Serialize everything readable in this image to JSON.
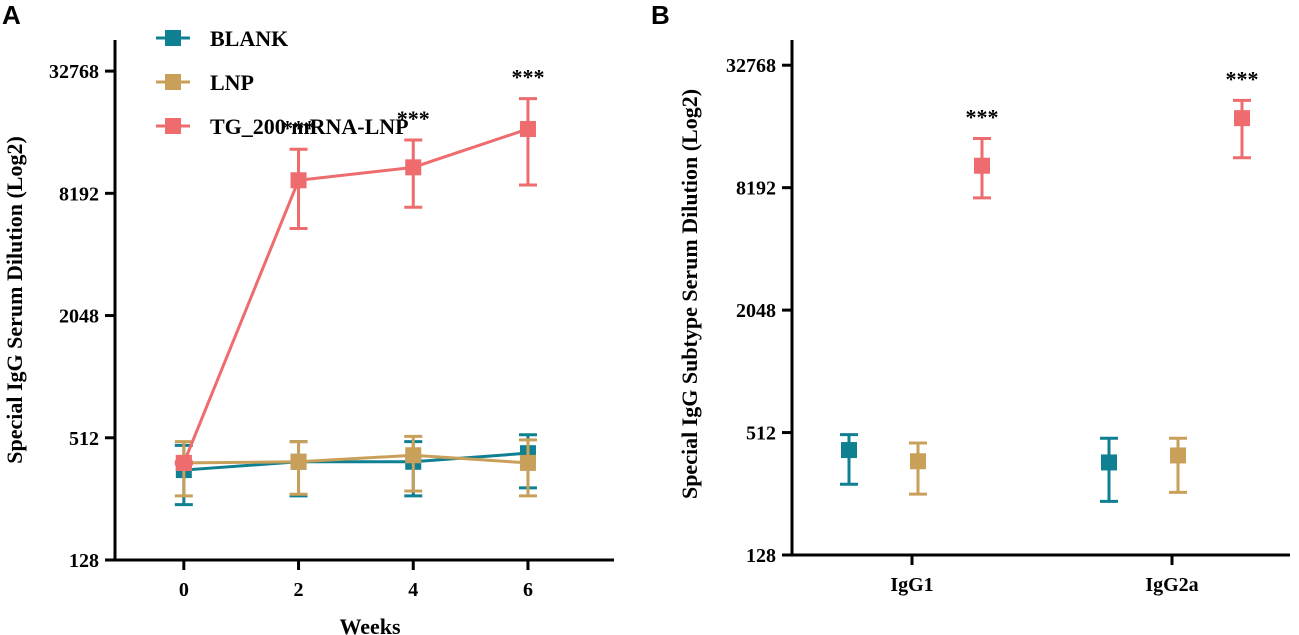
{
  "colors": {
    "blank": "#0f7f92",
    "lnp": "#c9a05a",
    "tg": "#ee6b6e"
  },
  "chart_data": [
    {
      "panel": "A",
      "type": "line",
      "xlabel": "Weeks",
      "ylabel": "Special IgG Serum Dilution (Log2)",
      "yscale": "log2",
      "ylim": [
        128,
        65536
      ],
      "yticks": [
        128,
        512,
        2048,
        8192,
        32768
      ],
      "ytick_labels": [
        "128",
        "512",
        "2048",
        "8192",
        "32768"
      ],
      "xlim": [
        -1.2,
        7.5
      ],
      "xticks": [
        0,
        2,
        4,
        6
      ],
      "xtick_labels": [
        "0",
        "2",
        "4",
        "6"
      ],
      "x": [
        0,
        2,
        4,
        6
      ],
      "series": [
        {
          "name": "BLANK",
          "color_key": "blank",
          "values": [
            355,
            390,
            390,
            430
          ],
          "err_low": [
            240,
            265,
            265,
            290
          ],
          "err_high": [
            470,
            490,
            490,
            530
          ]
        },
        {
          "name": "LNP",
          "color_key": "lnp",
          "values": [
            385,
            390,
            420,
            385
          ],
          "err_low": [
            265,
            270,
            280,
            265
          ],
          "err_high": [
            490,
            490,
            520,
            500
          ]
        },
        {
          "name": "TG_200 mRNA-LNP",
          "color_key": "tg",
          "values": [
            385,
            9500,
            11000,
            17000
          ],
          "err_low": [
            380,
            5500,
            7000,
            9000
          ],
          "err_high": [
            390,
            13500,
            15000,
            24000
          ]
        }
      ],
      "significance": [
        {
          "x": 2,
          "label": "***"
        },
        {
          "x": 4,
          "label": "***"
        },
        {
          "x": 6,
          "label": "***"
        }
      ],
      "legend": [
        "BLANK",
        "LNP",
        "TG_200 mRNA-LNP"
      ],
      "legend_position": "top-left"
    },
    {
      "panel": "B",
      "type": "scatter",
      "xlabel": "",
      "ylabel": "Special IgG Subtype Serum Dilution (Log2)",
      "yscale": "log2",
      "ylim": [
        128,
        65536
      ],
      "yticks": [
        128,
        512,
        2048,
        8192,
        32768
      ],
      "ytick_labels": [
        "128",
        "512",
        "2048",
        "8192",
        "32768"
      ],
      "categories": [
        "IgG1",
        "IgG2a"
      ],
      "series": [
        {
          "name": "BLANK",
          "color_key": "blank",
          "values": [
            420,
            365
          ],
          "err_low": [
            285,
            235
          ],
          "err_high": [
            500,
            480
          ]
        },
        {
          "name": "LNP",
          "color_key": "lnp",
          "values": [
            370,
            395
          ],
          "err_low": [
            255,
            260
          ],
          "err_high": [
            455,
            480
          ]
        },
        {
          "name": "TG_200 mRNA-LNP",
          "color_key": "tg",
          "values": [
            10500,
            18000
          ],
          "err_low": [
            7300,
            11500
          ],
          "err_high": [
            14300,
            22000
          ]
        }
      ],
      "significance": [
        {
          "category": "IgG1",
          "label": "***"
        },
        {
          "category": "IgG2a",
          "label": "***"
        }
      ]
    }
  ]
}
